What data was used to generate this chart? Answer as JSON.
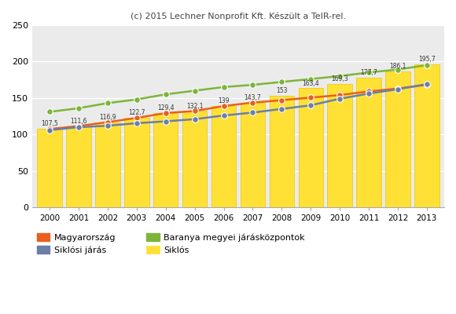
{
  "title": "(c) 2015 Lechner Nonprofit Kft. Készült a TeIR-rel.",
  "years": [
    2000,
    2001,
    2002,
    2003,
    2004,
    2005,
    2006,
    2007,
    2008,
    2009,
    2010,
    2011,
    2012,
    2013
  ],
  "siklos_bars": [
    107.5,
    111.6,
    116.9,
    122.7,
    129.4,
    132.1,
    139.0,
    143.7,
    153.0,
    163.4,
    169.3,
    177.7,
    186.1,
    195.7
  ],
  "magyarorszag": [
    107.5,
    111.6,
    116.9,
    122.7,
    129.4,
    132.1,
    139.0,
    143.7,
    147.0,
    150.5,
    154.0,
    159.0,
    163.0,
    168.0
  ],
  "baranya": [
    131.0,
    136.0,
    143.0,
    148.0,
    155.0,
    160.0,
    165.0,
    168.0,
    172.0,
    176.0,
    180.0,
    185.0,
    189.0,
    195.0
  ],
  "siklosi_jaras": [
    106.0,
    110.0,
    112.0,
    115.5,
    118.0,
    121.0,
    126.0,
    130.0,
    135.0,
    140.0,
    149.0,
    156.0,
    162.0,
    169.0
  ],
  "bar_color": "#FFE135",
  "bar_edge_color": "#E8C800",
  "magyarorszag_color": "#E8601C",
  "baranya_color": "#7DB53A",
  "siklosi_color": "#6C7FA6",
  "plot_bg": "#EBEBEB",
  "ylim": [
    0,
    250
  ],
  "yticks": [
    0,
    50,
    100,
    150,
    200,
    250
  ]
}
